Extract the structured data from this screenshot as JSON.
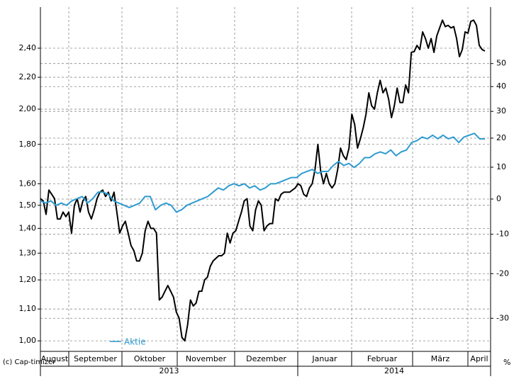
{
  "chart_data": {
    "type": "line",
    "copyright": "(c) Cap-timizer",
    "y2_unit": "%",
    "years": [
      {
        "name": "2013",
        "months": [
          "August",
          "September",
          "Oktober",
          "November",
          "Dezember"
        ]
      },
      {
        "name": "2014",
        "months": [
          "Januar",
          "Februar",
          "März",
          "April"
        ]
      }
    ],
    "yscale": "log",
    "ylim": [
      0.969,
      2.714
    ],
    "yticks": [
      {
        "value": 1.0,
        "label": "1,00"
      },
      {
        "value": 1.1,
        "label": "1,10"
      },
      {
        "value": 1.2,
        "label": "1,20"
      },
      {
        "value": 1.3,
        "label": "1,30"
      },
      {
        "value": 1.4,
        "label": "1,40"
      },
      {
        "value": 1.5,
        "label": "1,50"
      },
      {
        "value": 1.6,
        "label": "1,60"
      },
      {
        "value": 1.8,
        "label": "1,80"
      },
      {
        "value": 2.0,
        "label": "2,00"
      },
      {
        "value": 2.2,
        "label": "2,20"
      },
      {
        "value": 2.4,
        "label": "2,40"
      }
    ],
    "y2scale": "log-return",
    "y2lim": [
      -36.6,
      77.6
    ],
    "y2ticks": [
      50,
      40,
      30,
      20,
      10,
      0,
      -10,
      -20,
      -30
    ],
    "grid": true,
    "series": [
      {
        "color": "#000000",
        "values": [
          1.53,
          1.52,
          1.46,
          1.57,
          1.55,
          1.53,
          1.44,
          1.44,
          1.47,
          1.45,
          1.47,
          1.38,
          1.5,
          1.53,
          1.47,
          1.52,
          1.54,
          1.47,
          1.44,
          1.48,
          1.53,
          1.56,
          1.57,
          1.54,
          1.56,
          1.52,
          1.56,
          1.47,
          1.38,
          1.41,
          1.43,
          1.38,
          1.33,
          1.31,
          1.27,
          1.27,
          1.3,
          1.39,
          1.43,
          1.4,
          1.4,
          1.38,
          1.13,
          1.14,
          1.16,
          1.18,
          1.16,
          1.14,
          1.09,
          1.07,
          1.01,
          1.0,
          1.05,
          1.13,
          1.11,
          1.12,
          1.16,
          1.16,
          1.2,
          1.21,
          1.25,
          1.27,
          1.28,
          1.29,
          1.29,
          1.3,
          1.38,
          1.34,
          1.38,
          1.39,
          1.43,
          1.47,
          1.52,
          1.53,
          1.41,
          1.39,
          1.48,
          1.52,
          1.5,
          1.39,
          1.41,
          1.42,
          1.42,
          1.53,
          1.52,
          1.55,
          1.56,
          1.56,
          1.56,
          1.57,
          1.58,
          1.6,
          1.59,
          1.55,
          1.54,
          1.58,
          1.6,
          1.67,
          1.8,
          1.66,
          1.6,
          1.65,
          1.6,
          1.58,
          1.6,
          1.67,
          1.78,
          1.74,
          1.72,
          1.78,
          1.97,
          1.91,
          1.78,
          1.83,
          1.89,
          1.97,
          2.1,
          2.02,
          2.0,
          2.1,
          2.18,
          2.1,
          2.13,
          2.06,
          1.95,
          2.02,
          2.13,
          2.04,
          2.04,
          2.15,
          2.1,
          2.37,
          2.375,
          2.42,
          2.39,
          2.52,
          2.47,
          2.4,
          2.47,
          2.37,
          2.49,
          2.55,
          2.61,
          2.56,
          2.57,
          2.55,
          2.56,
          2.47,
          2.34,
          2.39,
          2.52,
          2.51,
          2.6,
          2.61,
          2.57,
          2.42,
          2.39,
          2.38
        ]
      },
      {
        "name": "Aktie",
        "color": "#2f9bd1",
        "values": [
          1.52,
          1.51,
          1.52,
          1.5,
          1.51,
          1.5,
          1.52,
          1.53,
          1.54,
          1.51,
          1.53,
          1.56,
          1.56,
          1.55,
          1.52,
          1.51,
          1.5,
          1.49,
          1.5,
          1.51,
          1.54,
          1.54,
          1.48,
          1.5,
          1.51,
          1.5,
          1.47,
          1.48,
          1.5,
          1.51,
          1.52,
          1.53,
          1.54,
          1.56,
          1.58,
          1.57,
          1.59,
          1.6,
          1.59,
          1.6,
          1.58,
          1.59,
          1.57,
          1.58,
          1.6,
          1.6,
          1.61,
          1.62,
          1.63,
          1.63,
          1.65,
          1.66,
          1.67,
          1.65,
          1.66,
          1.66,
          1.69,
          1.71,
          1.69,
          1.7,
          1.68,
          1.7,
          1.73,
          1.73,
          1.75,
          1.76,
          1.75,
          1.77,
          1.74,
          1.76,
          1.77,
          1.81,
          1.82,
          1.84,
          1.83,
          1.85,
          1.83,
          1.85,
          1.83,
          1.84,
          1.81,
          1.84,
          1.85,
          1.86,
          1.83,
          1.83
        ]
      }
    ]
  }
}
